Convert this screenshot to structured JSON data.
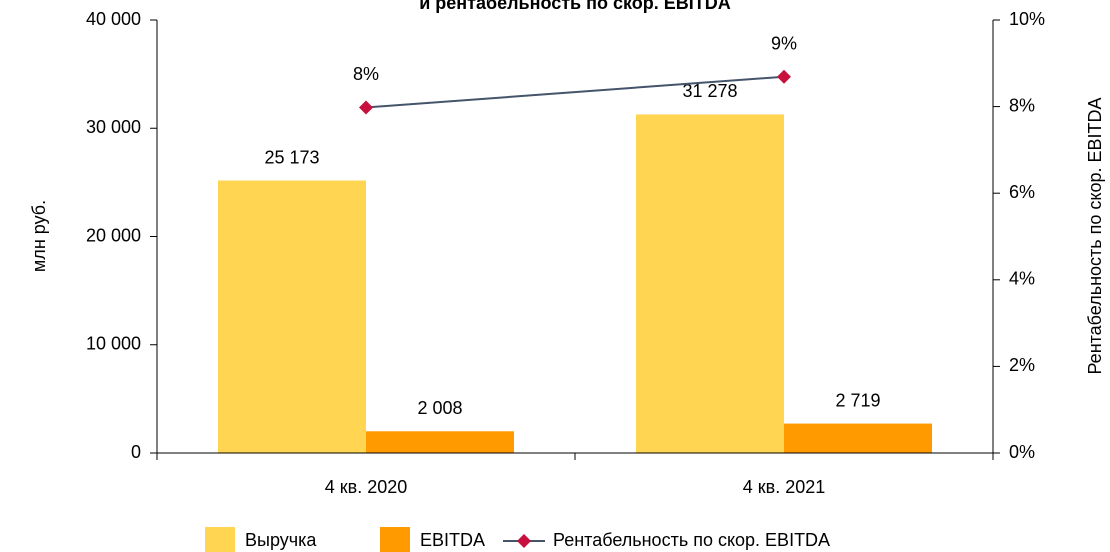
{
  "chart_data": {
    "type": "bar",
    "title": "и рентабельность по скор. EBITDA",
    "ylabel": "млн руб.",
    "y2label": "Рентабельность по скор. EBITDA",
    "categories": [
      "4 кв. 2020",
      "4 кв. 2021"
    ],
    "series": [
      {
        "name": "Выручка",
        "type": "bar",
        "color": "#ffd551",
        "values": [
          25173,
          31278
        ],
        "value_labels": [
          "25 173",
          "31 278"
        ]
      },
      {
        "name": "EBITDA",
        "type": "bar",
        "color": "#ff9a00",
        "values": [
          2008,
          2719
        ],
        "value_labels": [
          "2 008",
          "2 719"
        ]
      },
      {
        "name": "Рентабельность по скор. EBITDA",
        "type": "line",
        "axis": "y2",
        "color": "#44546a",
        "marker_color": "#c8103e",
        "values": [
          7.98,
          8.69
        ],
        "value_labels": [
          "8%",
          "9%"
        ]
      }
    ],
    "ylim": [
      0,
      40000
    ],
    "yticks": [
      {
        "value": 0,
        "label": "0"
      },
      {
        "value": 10000,
        "label": "10 000"
      },
      {
        "value": 20000,
        "label": "20 000"
      },
      {
        "value": 30000,
        "label": "30 000"
      },
      {
        "value": 40000,
        "label": "40 000"
      }
    ],
    "y2lim": [
      0,
      10
    ],
    "y2ticks": [
      {
        "value": 0,
        "label": "0%"
      },
      {
        "value": 2,
        "label": "2%"
      },
      {
        "value": 4,
        "label": "4%"
      },
      {
        "value": 6,
        "label": "6%"
      },
      {
        "value": 8,
        "label": "8%"
      },
      {
        "value": 10,
        "label": "10%"
      }
    ],
    "legend": "bottom"
  }
}
